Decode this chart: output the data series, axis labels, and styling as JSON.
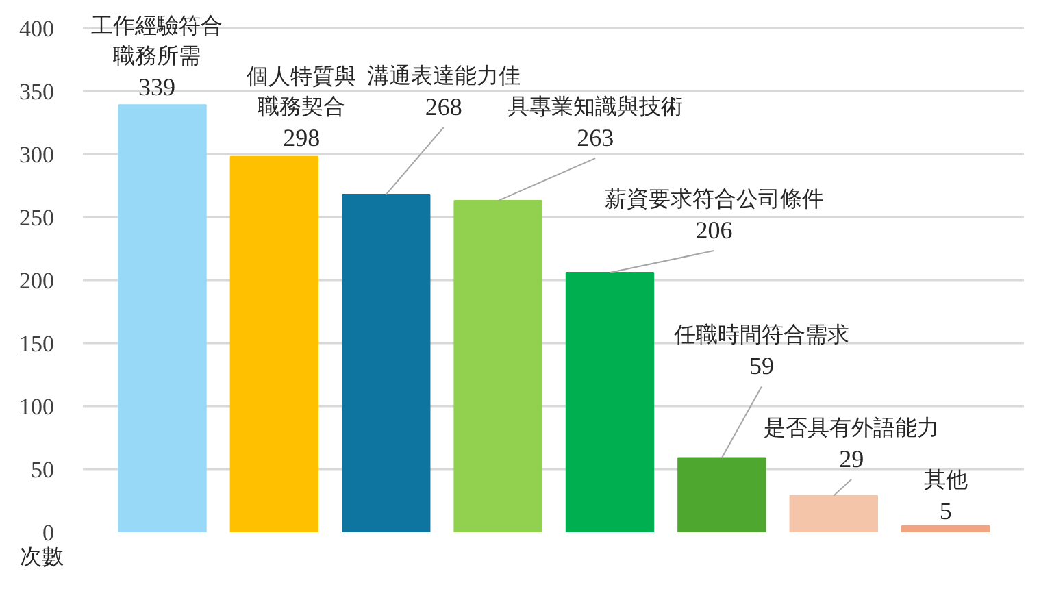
{
  "chart_data": {
    "type": "bar",
    "ylabel": "次數",
    "categories": [
      null,
      null,
      null,
      null,
      null,
      null,
      null,
      null
    ],
    "values": [
      339,
      298,
      268,
      263,
      206,
      59,
      29,
      5
    ],
    "colors": [
      "#97d9f6",
      "#ffc000",
      "#0e75a0",
      "#92d050",
      "#00b050",
      "#4ea72e",
      "#f5c5aa",
      "#f2a37f"
    ],
    "annotations": [
      "工作經驗符合職務所需",
      "個人特質與職務契合",
      "溝通表達能力佳",
      "具專業知識與技術",
      "薪資要求符合公司條件",
      "任職時間符合需求",
      "是否具有外語能力",
      "其他"
    ],
    "ylim": [
      0,
      400
    ],
    "yticks": [
      0,
      50,
      100,
      150,
      200,
      250,
      300,
      350,
      400
    ],
    "grid": "y",
    "data_labels": true,
    "tick_labels": "y"
  }
}
